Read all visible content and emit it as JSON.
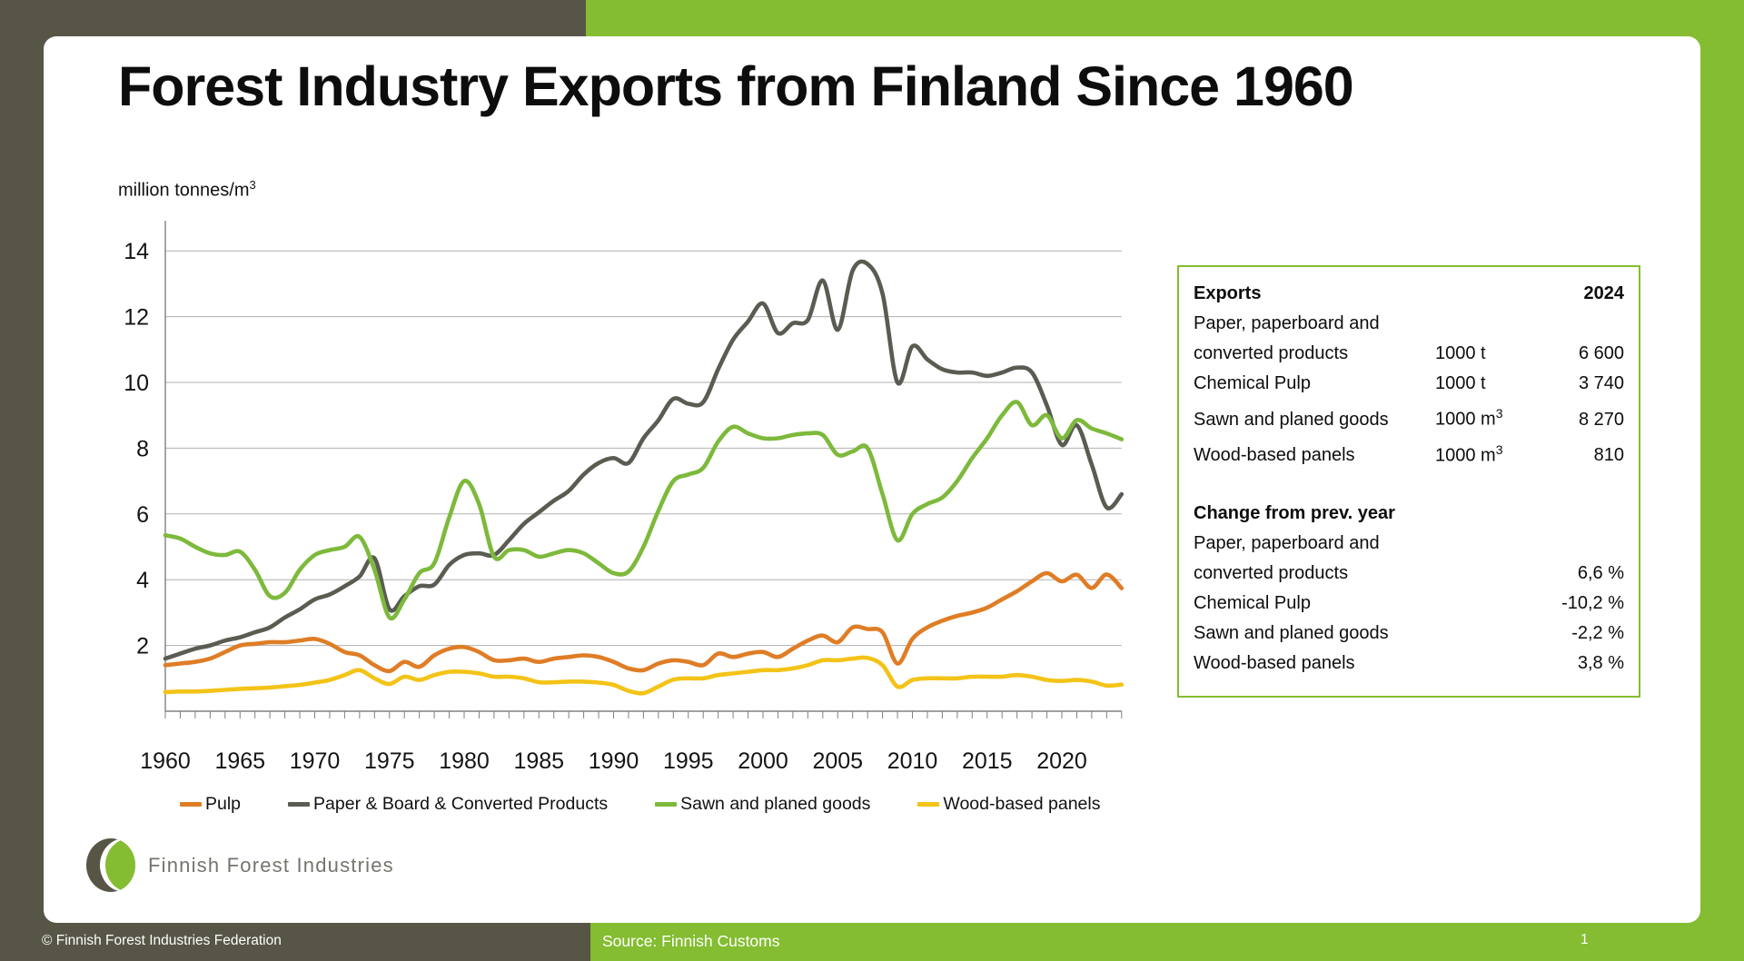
{
  "frame": {
    "olive": "#575546",
    "green": "#84bd31"
  },
  "slide": {
    "title": "Forest Industry Exports from Finland Since 1960",
    "unit_label": "million tonnes/m",
    "unit_sup": "3"
  },
  "chart_data": {
    "type": "line",
    "title": "Forest Industry Exports from Finland Since 1960",
    "ylabel": "million tonnes/m3",
    "xlabel": "",
    "xlim": [
      1960,
      2024
    ],
    "ylim": [
      0,
      14.9
    ],
    "xticks": [
      1960,
      1965,
      1970,
      1975,
      1980,
      1985,
      1990,
      1995,
      2000,
      2005,
      2010,
      2015,
      2020
    ],
    "yticks": [
      2,
      4,
      6,
      8,
      10,
      12,
      14
    ],
    "grid": "horizontal",
    "legend_position": "bottom",
    "x": [
      1960,
      1961,
      1962,
      1963,
      1964,
      1965,
      1966,
      1967,
      1968,
      1969,
      1970,
      1971,
      1972,
      1973,
      1974,
      1975,
      1976,
      1977,
      1978,
      1979,
      1980,
      1981,
      1982,
      1983,
      1984,
      1985,
      1986,
      1987,
      1988,
      1989,
      1990,
      1991,
      1992,
      1993,
      1994,
      1995,
      1996,
      1997,
      1998,
      1999,
      2000,
      2001,
      2002,
      2003,
      2004,
      2005,
      2006,
      2007,
      2008,
      2009,
      2010,
      2011,
      2012,
      2013,
      2014,
      2015,
      2016,
      2017,
      2018,
      2019,
      2020,
      2021,
      2022,
      2023,
      2024
    ],
    "series": [
      {
        "name": "Pulp",
        "color": "#df7d26",
        "values": [
          1.4,
          1.45,
          1.5,
          1.6,
          1.8,
          2.0,
          2.05,
          2.1,
          2.1,
          2.15,
          2.2,
          2.05,
          1.8,
          1.7,
          1.4,
          1.22,
          1.5,
          1.35,
          1.7,
          1.9,
          1.95,
          1.8,
          1.55,
          1.55,
          1.6,
          1.5,
          1.6,
          1.65,
          1.7,
          1.65,
          1.5,
          1.3,
          1.25,
          1.45,
          1.55,
          1.5,
          1.4,
          1.75,
          1.65,
          1.75,
          1.8,
          1.65,
          1.9,
          2.15,
          2.3,
          2.1,
          2.55,
          2.5,
          2.4,
          1.45,
          2.2,
          2.55,
          2.75,
          2.9,
          3.0,
          3.15,
          3.4,
          3.65,
          3.95,
          4.2,
          3.95,
          4.15,
          3.75,
          4.16,
          3.74
        ]
      },
      {
        "name": "Paper & Board & Converted Products",
        "color": "#5a5c52",
        "values": [
          1.6,
          1.75,
          1.9,
          2.0,
          2.15,
          2.25,
          2.4,
          2.55,
          2.85,
          3.1,
          3.4,
          3.55,
          3.8,
          4.1,
          4.65,
          3.1,
          3.5,
          3.8,
          3.85,
          4.45,
          4.75,
          4.8,
          4.75,
          5.2,
          5.7,
          6.05,
          6.4,
          6.7,
          7.2,
          7.55,
          7.7,
          7.55,
          8.3,
          8.85,
          9.5,
          9.35,
          9.4,
          10.4,
          11.3,
          11.85,
          12.4,
          11.5,
          11.8,
          11.9,
          13.1,
          11.6,
          13.4,
          13.6,
          12.7,
          10.0,
          11.1,
          10.7,
          10.4,
          10.3,
          10.3,
          10.2,
          10.3,
          10.45,
          10.3,
          9.3,
          8.1,
          8.7,
          7.5,
          6.2,
          6.6
        ]
      },
      {
        "name": "Sawn and planed goods",
        "color": "#7db93b",
        "values": [
          5.35,
          5.25,
          5.0,
          4.8,
          4.75,
          4.85,
          4.3,
          3.5,
          3.6,
          4.3,
          4.75,
          4.9,
          5.0,
          5.3,
          4.3,
          2.85,
          3.4,
          4.2,
          4.5,
          5.9,
          7.0,
          6.3,
          4.7,
          4.9,
          4.9,
          4.7,
          4.8,
          4.9,
          4.8,
          4.5,
          4.2,
          4.25,
          5.0,
          6.1,
          7.0,
          7.2,
          7.4,
          8.2,
          8.65,
          8.45,
          8.3,
          8.3,
          8.4,
          8.45,
          8.4,
          7.8,
          7.9,
          8.0,
          6.6,
          5.2,
          6.0,
          6.3,
          6.5,
          7.0,
          7.7,
          8.3,
          9.0,
          9.4,
          8.7,
          9.0,
          8.3,
          8.85,
          8.6,
          8.45,
          8.27
        ]
      },
      {
        "name": "Wood-based panels",
        "color": "#f3c317",
        "values": [
          0.58,
          0.6,
          0.6,
          0.62,
          0.65,
          0.68,
          0.7,
          0.72,
          0.76,
          0.8,
          0.87,
          0.95,
          1.1,
          1.25,
          1.0,
          0.83,
          1.05,
          0.95,
          1.1,
          1.2,
          1.2,
          1.15,
          1.05,
          1.05,
          1.0,
          0.88,
          0.88,
          0.9,
          0.9,
          0.87,
          0.8,
          0.62,
          0.55,
          0.75,
          0.96,
          1.0,
          1.0,
          1.1,
          1.15,
          1.2,
          1.25,
          1.25,
          1.3,
          1.4,
          1.55,
          1.55,
          1.6,
          1.62,
          1.4,
          0.75,
          0.95,
          1.0,
          1.0,
          1.0,
          1.05,
          1.05,
          1.05,
          1.1,
          1.05,
          0.95,
          0.92,
          0.95,
          0.9,
          0.78,
          0.81
        ]
      }
    ]
  },
  "table": {
    "header": {
      "label": "Exports",
      "year": "2024"
    },
    "rows": [
      {
        "label": "Paper, paperboard and",
        "label2": "converted products",
        "unit": "1000 t",
        "unit_sup": "",
        "value": "6 600"
      },
      {
        "label": "Chemical Pulp",
        "label2": "",
        "unit": "1000 t",
        "unit_sup": "",
        "value": "3 740"
      },
      {
        "label": "Sawn and planed goods",
        "label2": "",
        "unit": "1000 m",
        "unit_sup": "3",
        "value": "8 270"
      },
      {
        "label": "Wood-based panels",
        "label2": "",
        "unit": "1000 m",
        "unit_sup": "3",
        "value": "810"
      }
    ],
    "change_header": "Change from prev. year",
    "change_rows": [
      {
        "label": "Paper, paperboard and",
        "label2": "converted products",
        "value": "6,6 %"
      },
      {
        "label": "Chemical Pulp",
        "label2": "",
        "value": "-10,2 %"
      },
      {
        "label": "Sawn and planed goods",
        "label2": "",
        "value": "-2,2 %"
      },
      {
        "label": "Wood-based panels",
        "label2": "",
        "value": "3,8 %"
      }
    ]
  },
  "logo": {
    "text": "Finnish Forest Industries"
  },
  "footer": {
    "copyright": "© Finnish Forest Industries Federation",
    "source": "Source: Finnish Customs",
    "page": "1"
  }
}
